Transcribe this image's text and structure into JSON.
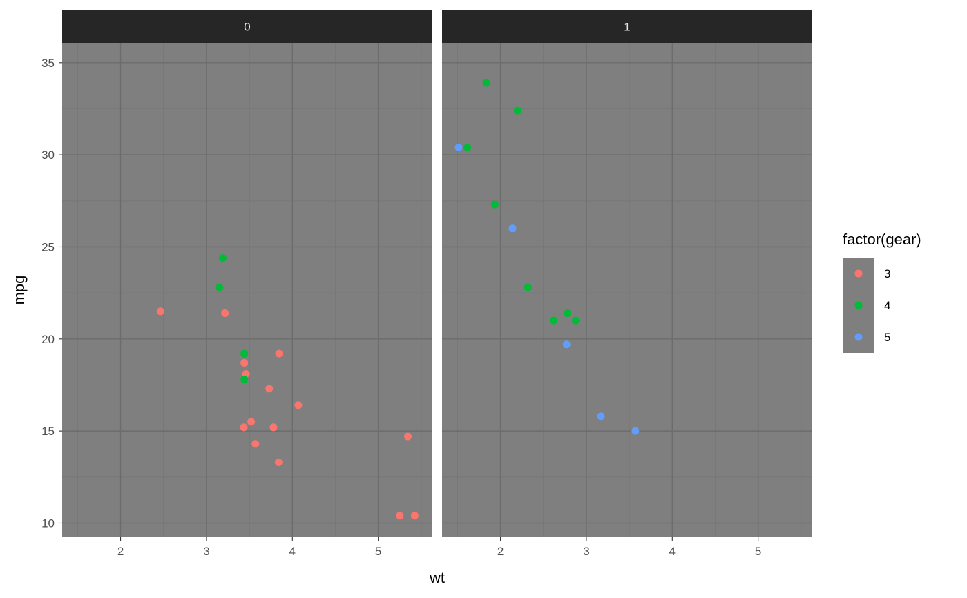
{
  "chart_data": {
    "type": "scatter",
    "xlabel": "wt",
    "ylabel": "mpg",
    "xlim": [
      1.32,
      5.63
    ],
    "ylim": [
      9.23,
      36.08
    ],
    "x_ticks": [
      2,
      3,
      4,
      5
    ],
    "y_ticks": [
      10,
      15,
      20,
      25,
      30,
      35
    ],
    "grid": true,
    "theme": "dark",
    "colors": {
      "panel_bg": "#7f7f7f",
      "strip_bg": "#262626",
      "grid_major": "#6c6c6c",
      "grid_minor": "#767676",
      "tick_text": "#4d4d4d"
    },
    "facets": [
      {
        "label": "0",
        "points": [
          {
            "x": 2.465,
            "y": 21.5,
            "gear": "3"
          },
          {
            "x": 3.215,
            "y": 21.4,
            "gear": "3"
          },
          {
            "x": 3.44,
            "y": 18.7,
            "gear": "3"
          },
          {
            "x": 3.46,
            "y": 18.1,
            "gear": "3"
          },
          {
            "x": 3.57,
            "y": 14.3,
            "gear": "3"
          },
          {
            "x": 4.07,
            "y": 16.4,
            "gear": "3"
          },
          {
            "x": 3.73,
            "y": 17.3,
            "gear": "3"
          },
          {
            "x": 3.78,
            "y": 15.2,
            "gear": "3"
          },
          {
            "x": 5.25,
            "y": 10.4,
            "gear": "3"
          },
          {
            "x": 5.424,
            "y": 10.4,
            "gear": "3"
          },
          {
            "x": 5.345,
            "y": 14.7,
            "gear": "3"
          },
          {
            "x": 3.52,
            "y": 15.5,
            "gear": "3"
          },
          {
            "x": 3.435,
            "y": 15.2,
            "gear": "3"
          },
          {
            "x": 3.84,
            "y": 13.3,
            "gear": "3"
          },
          {
            "x": 3.845,
            "y": 19.2,
            "gear": "3"
          },
          {
            "x": 3.19,
            "y": 24.4,
            "gear": "4"
          },
          {
            "x": 3.15,
            "y": 22.8,
            "gear": "4"
          },
          {
            "x": 3.44,
            "y": 19.2,
            "gear": "4"
          },
          {
            "x": 3.44,
            "y": 17.8,
            "gear": "4"
          }
        ]
      },
      {
        "label": "1",
        "points": [
          {
            "x": 2.62,
            "y": 21.0,
            "gear": "4"
          },
          {
            "x": 2.875,
            "y": 21.0,
            "gear": "4"
          },
          {
            "x": 2.32,
            "y": 22.8,
            "gear": "4"
          },
          {
            "x": 2.2,
            "y": 32.4,
            "gear": "4"
          },
          {
            "x": 1.615,
            "y": 30.4,
            "gear": "4"
          },
          {
            "x": 1.835,
            "y": 33.9,
            "gear": "4"
          },
          {
            "x": 1.935,
            "y": 27.3,
            "gear": "4"
          },
          {
            "x": 2.78,
            "y": 21.4,
            "gear": "4"
          },
          {
            "x": 2.14,
            "y": 26.0,
            "gear": "5"
          },
          {
            "x": 1.513,
            "y": 30.4,
            "gear": "5"
          },
          {
            "x": 3.17,
            "y": 15.8,
            "gear": "5"
          },
          {
            "x": 2.77,
            "y": 19.7,
            "gear": "5"
          },
          {
            "x": 3.57,
            "y": 15.0,
            "gear": "5"
          }
        ]
      }
    ],
    "legend": {
      "title": "factor(gear)",
      "position": "right",
      "items": [
        {
          "label": "3",
          "color": "#F8766D"
        },
        {
          "label": "4",
          "color": "#00BA38"
        },
        {
          "label": "5",
          "color": "#619CFF"
        }
      ]
    }
  }
}
